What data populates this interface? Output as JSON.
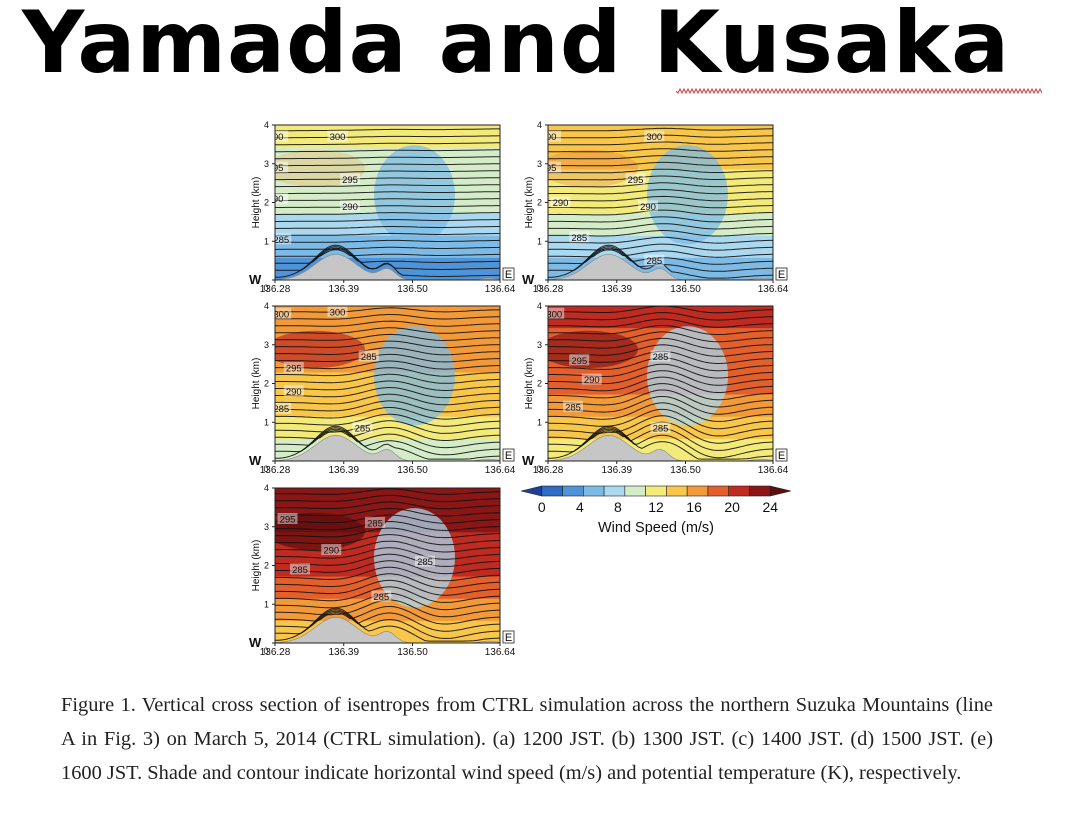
{
  "slide": {
    "title": "Yamada and Kusaka",
    "caption": "Figure 1. Vertical cross section of isentropes from CTRL simulation across the northern Suzuka Mountains (line A in Fig. 3) on March 5, 2014 (CTRL simulation). (a) 1200 JST. (b) 1300 JST. (c) 1400 JST. (d) 1500 JST. (e) 1600 JST. Shade and contour indicate horizontal wind speed (m/s) and potential temperature (K), respectively."
  },
  "chart_data": [
    {
      "type": "heatmap",
      "panel": "a",
      "ylabel": "Height (km)",
      "yticks": [
        "0",
        "1",
        "2",
        "3",
        "4"
      ],
      "ylim": [
        0,
        4
      ],
      "xticks": [
        "136.28",
        "136.39",
        "136.50",
        "136.64"
      ],
      "xlim": [
        136.28,
        136.64
      ],
      "west_label": "W",
      "east_label": "E",
      "contour_labels": [
        {
          "text": "300",
          "x": 136.38,
          "y": 3.7
        },
        {
          "text": "295",
          "x": 136.4,
          "y": 2.6
        },
        {
          "text": "290",
          "x": 136.4,
          "y": 1.9
        },
        {
          "text": "285",
          "x": 136.29,
          "y": 1.05
        },
        {
          "text": "00",
          "x": 136.285,
          "y": 3.7
        },
        {
          "text": "95",
          "x": 136.285,
          "y": 2.9
        },
        {
          "text": "90",
          "x": 136.285,
          "y": 2.1
        }
      ],
      "colormap_peak": 1
    },
    {
      "type": "heatmap",
      "panel": "b",
      "ylabel": "Height (km)",
      "yticks": [
        "0",
        "1",
        "2",
        "3",
        "4"
      ],
      "ylim": [
        0,
        4
      ],
      "xticks": [
        "136.28",
        "136.39",
        "136.50",
        "136.64"
      ],
      "xlim": [
        136.28,
        136.64
      ],
      "west_label": "W",
      "east_label": "E",
      "contour_labels": [
        {
          "text": "300",
          "x": 136.45,
          "y": 3.7
        },
        {
          "text": "295",
          "x": 136.42,
          "y": 2.6
        },
        {
          "text": "290",
          "x": 136.3,
          "y": 2.0
        },
        {
          "text": "285",
          "x": 136.33,
          "y": 1.1
        },
        {
          "text": "290",
          "x": 136.44,
          "y": 1.9
        },
        {
          "text": "285",
          "x": 136.45,
          "y": 0.5
        },
        {
          "text": "00",
          "x": 136.285,
          "y": 3.7
        },
        {
          "text": "95",
          "x": 136.285,
          "y": 2.9
        }
      ],
      "colormap_peak": 2
    },
    {
      "type": "heatmap",
      "panel": "c",
      "ylabel": "Height (km)",
      "yticks": [
        "0",
        "1",
        "2",
        "3",
        "4"
      ],
      "ylim": [
        0,
        4
      ],
      "xticks": [
        "136.28",
        "136.39",
        "136.50",
        "136.64"
      ],
      "xlim": [
        136.28,
        136.64
      ],
      "west_label": "W",
      "east_label": "E",
      "contour_labels": [
        {
          "text": "300",
          "x": 136.38,
          "y": 3.85
        },
        {
          "text": "295",
          "x": 136.31,
          "y": 2.4
        },
        {
          "text": "290",
          "x": 136.31,
          "y": 1.8
        },
        {
          "text": "285",
          "x": 136.29,
          "y": 1.35
        },
        {
          "text": "285",
          "x": 136.43,
          "y": 2.7
        },
        {
          "text": "285",
          "x": 136.42,
          "y": 0.85
        },
        {
          "text": "300",
          "x": 136.29,
          "y": 3.8
        }
      ],
      "colormap_peak": 3
    },
    {
      "type": "heatmap",
      "panel": "d",
      "ylabel": "Height (km)",
      "yticks": [
        "0",
        "1",
        "2",
        "3",
        "4"
      ],
      "ylim": [
        0,
        4
      ],
      "xticks": [
        "136.28",
        "136.39",
        "136.50",
        "136.64"
      ],
      "xlim": [
        136.28,
        136.64
      ],
      "west_label": "W",
      "east_label": "E",
      "contour_labels": [
        {
          "text": "300",
          "x": 136.29,
          "y": 3.8
        },
        {
          "text": "295",
          "x": 136.33,
          "y": 2.6
        },
        {
          "text": "290",
          "x": 136.35,
          "y": 2.1
        },
        {
          "text": "285",
          "x": 136.32,
          "y": 1.4
        },
        {
          "text": "285",
          "x": 136.46,
          "y": 2.7
        },
        {
          "text": "285",
          "x": 136.46,
          "y": 0.85
        }
      ],
      "colormap_peak": 4
    },
    {
      "type": "heatmap",
      "panel": "e",
      "ylabel": "Height (km)",
      "yticks": [
        "0",
        "1",
        "2",
        "3",
        "4"
      ],
      "ylim": [
        0,
        4
      ],
      "xticks": [
        "136.28",
        "136.39",
        "136.50",
        "136.64"
      ],
      "xlim": [
        136.28,
        136.64
      ],
      "west_label": "W",
      "east_label": "E",
      "contour_labels": [
        {
          "text": "295",
          "x": 136.3,
          "y": 3.2
        },
        {
          "text": "290",
          "x": 136.37,
          "y": 2.4
        },
        {
          "text": "285",
          "x": 136.32,
          "y": 1.9
        },
        {
          "text": "285",
          "x": 136.44,
          "y": 3.1
        },
        {
          "text": "285",
          "x": 136.52,
          "y": 2.1
        },
        {
          "text": "285",
          "x": 136.45,
          "y": 1.2
        }
      ],
      "colormap_peak": 5
    }
  ],
  "colorbar": {
    "label": "Wind Speed (m/s)",
    "ticks": [
      "0",
      "4",
      "8",
      "12",
      "16",
      "20",
      "24"
    ],
    "range": [
      0,
      24
    ],
    "colors": [
      "#1f3f9c",
      "#2e6bc4",
      "#4f94d8",
      "#7dbbe6",
      "#a9d8ef",
      "#d4edc8",
      "#f3ea7a",
      "#f8c64a",
      "#f29a3a",
      "#e35f2c",
      "#bf2b21",
      "#8a1616",
      "#5c0d0d"
    ]
  },
  "colors": {
    "terrain": "#c6c6c6",
    "contour": "#111111",
    "caption_text": "#222222",
    "squiggle": "#d23a3a"
  }
}
